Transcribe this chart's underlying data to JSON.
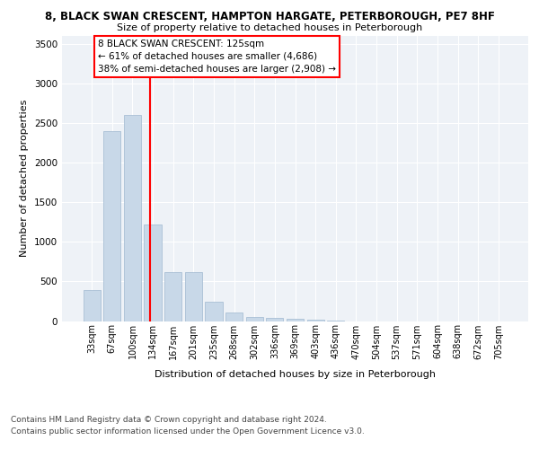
{
  "title_line1": "8, BLACK SWAN CRESCENT, HAMPTON HARGATE, PETERBOROUGH, PE7 8HF",
  "title_line2": "Size of property relative to detached houses in Peterborough",
  "xlabel": "Distribution of detached houses by size in Peterborough",
  "ylabel": "Number of detached properties",
  "categories": [
    "33sqm",
    "67sqm",
    "100sqm",
    "134sqm",
    "167sqm",
    "201sqm",
    "235sqm",
    "268sqm",
    "302sqm",
    "336sqm",
    "369sqm",
    "403sqm",
    "436sqm",
    "470sqm",
    "504sqm",
    "537sqm",
    "571sqm",
    "604sqm",
    "638sqm",
    "672sqm",
    "705sqm"
  ],
  "values": [
    390,
    2400,
    2600,
    1220,
    620,
    620,
    240,
    110,
    55,
    40,
    30,
    15,
    5,
    0,
    0,
    0,
    0,
    0,
    0,
    0,
    0
  ],
  "bar_color": "#c8d8e8",
  "bar_edgecolor": "#a0b8d0",
  "red_line_x": 2.85,
  "annotation_line1": "8 BLACK SWAN CRESCENT: 125sqm",
  "annotation_line2": "← 61% of detached houses are smaller (4,686)",
  "annotation_line3": "38% of semi-detached houses are larger (2,908) →",
  "ylim": [
    0,
    3600
  ],
  "yticks": [
    0,
    500,
    1000,
    1500,
    2000,
    2500,
    3000,
    3500
  ],
  "plot_bg_color": "#eef2f7",
  "grid_color": "#ffffff",
  "footnote1": "Contains HM Land Registry data © Crown copyright and database right 2024.",
  "footnote2": "Contains public sector information licensed under the Open Government Licence v3.0."
}
